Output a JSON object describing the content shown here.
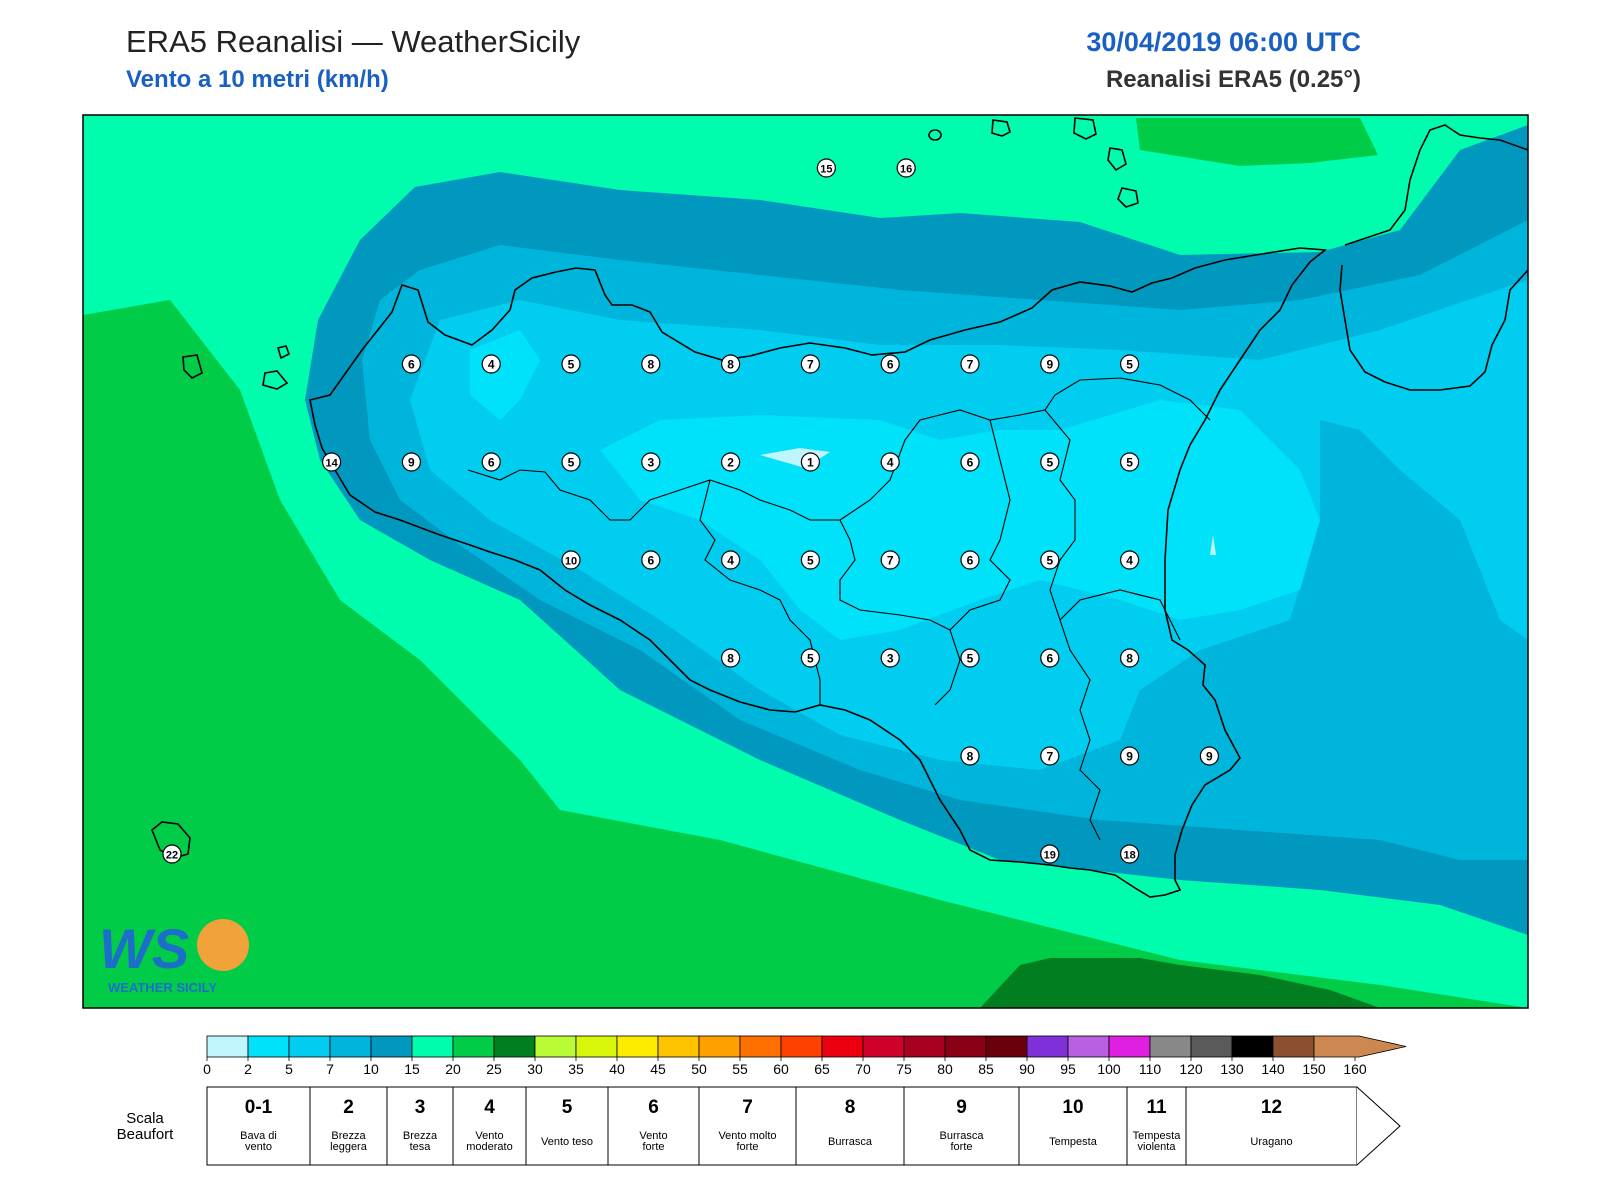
{
  "header": {
    "title": "ERA5 Reanalisi — WeatherSicily",
    "subtitle": "Vento a 10 metri (km/h)",
    "datetime": "30/04/2019 06:00 UTC",
    "source": "Reanalisi ERA5 (0.25°)"
  },
  "logo": {
    "letters": "WS",
    "text": "WEATHER SICILY"
  },
  "colors": {
    "0-2": "#bff5fd",
    "2-5": "#00e1fa",
    "5-7": "#00cdf0",
    "7-10": "#00b5dc",
    "10-15": "#0098be",
    "15-20": "#00fcad",
    "20-25": "#00cc48",
    "25-30": "#007e20",
    "30-35": "#b9fb35",
    "35-40": "#d7f60a",
    "40-45": "#fbec00",
    "45-50": "#ffc300",
    "50-55": "#ffa000",
    "55-60": "#ff7000",
    "60-65": "#ff4000",
    "65-70": "#ec0010",
    "70-75": "#d0002a",
    "75-80": "#a80020",
    "80-85": "#8a0014",
    "85-90": "#6a000a",
    "90-95": "#8030d8",
    "95-100": "#b860e0",
    "100-110": "#e020e0",
    "110-120": "#888888",
    "120-130": "#5a5a5a",
    "130-140": "#000000",
    "140-150": "#8c5030",
    "150-160": "#cc8850"
  },
  "colorbar": {
    "ticks": [
      "0",
      "2",
      "5",
      "7",
      "10",
      "15",
      "20",
      "25",
      "30",
      "35",
      "40",
      "45",
      "50",
      "55",
      "60",
      "65",
      "70",
      "75",
      "80",
      "85",
      "90",
      "95",
      "100",
      "110",
      "120",
      "130",
      "140",
      "150",
      "160"
    ],
    "colors": [
      "#bff5fd",
      "#00e1fa",
      "#00cdf0",
      "#00b5dc",
      "#0098be",
      "#00fcad",
      "#00cc48",
      "#007e20",
      "#b9fb35",
      "#d7f60a",
      "#fbec00",
      "#ffc300",
      "#ffa000",
      "#ff7000",
      "#ff4000",
      "#ec0010",
      "#d0002a",
      "#a80020",
      "#8a0014",
      "#6a000a",
      "#8030d8",
      "#b860e0",
      "#e020e0",
      "#888888",
      "#5a5a5a",
      "#000000",
      "#8c5030",
      "#cc8850"
    ]
  },
  "beaufort": {
    "label_line1": "Scala",
    "label_line2": "Beaufort",
    "classes": [
      {
        "num": "0-1",
        "desc": [
          "Bava di",
          "vento"
        ]
      },
      {
        "num": "2",
        "desc": [
          "Brezza",
          "leggera"
        ]
      },
      {
        "num": "3",
        "desc": [
          "Brezza",
          "tesa"
        ]
      },
      {
        "num": "4",
        "desc": [
          "Vento",
          "moderato"
        ]
      },
      {
        "num": "5",
        "desc": [
          "Vento teso"
        ]
      },
      {
        "num": "6",
        "desc": [
          "Vento",
          "forte"
        ]
      },
      {
        "num": "7",
        "desc": [
          "Vento molto",
          "forte"
        ]
      },
      {
        "num": "8",
        "desc": [
          "Burrasca"
        ]
      },
      {
        "num": "9",
        "desc": [
          "Burrasca",
          "forte"
        ]
      },
      {
        "num": "10",
        "desc": [
          "Tempesta"
        ]
      },
      {
        "num": "11",
        "desc": [
          "Tempesta",
          "violenta"
        ]
      },
      {
        "num": "12",
        "desc": [
          "Uragano"
        ]
      }
    ]
  },
  "stations": [
    {
      "lon": 15.1,
      "lat": 38.55,
      "v": "15"
    },
    {
      "lon": 15.6,
      "lat": 38.55,
      "v": "16"
    },
    {
      "lon": 12.5,
      "lat": 38.05,
      "v": "6"
    },
    {
      "lon": 13.0,
      "lat": 38.05,
      "v": "4"
    },
    {
      "lon": 13.5,
      "lat": 38.05,
      "v": "5"
    },
    {
      "lon": 14.0,
      "lat": 38.05,
      "v": "8"
    },
    {
      "lon": 14.5,
      "lat": 38.05,
      "v": "8"
    },
    {
      "lon": 15.0,
      "lat": 38.05,
      "v": "7"
    },
    {
      "lon": 15.5,
      "lat": 38.05,
      "v": "6"
    },
    {
      "lon": 16.0,
      "lat": 38.05,
      "v": "7"
    },
    {
      "lon": 16.5,
      "lat": 38.05,
      "v": "9"
    },
    {
      "lon": 17.0,
      "lat": 38.05,
      "v": "5"
    },
    {
      "lon": 12.0,
      "lat": 37.8,
      "v": "14"
    },
    {
      "lon": 12.5,
      "lat": 37.8,
      "v": "9"
    },
    {
      "lon": 13.0,
      "lat": 37.8,
      "v": "6"
    },
    {
      "lon": 13.5,
      "lat": 37.8,
      "v": "5"
    },
    {
      "lon": 14.0,
      "lat": 37.8,
      "v": "3"
    },
    {
      "lon": 14.5,
      "lat": 37.8,
      "v": "2"
    },
    {
      "lon": 15.0,
      "lat": 37.8,
      "v": "1"
    },
    {
      "lon": 15.5,
      "lat": 37.8,
      "v": "4"
    },
    {
      "lon": 16.0,
      "lat": 37.8,
      "v": "6"
    },
    {
      "lon": 16.5,
      "lat": 37.8,
      "v": "5"
    },
    {
      "lon": 17.0,
      "lat": 37.8,
      "v": "5"
    },
    {
      "lon": 13.5,
      "lat": 37.55,
      "v": "10"
    },
    {
      "lon": 14.0,
      "lat": 37.55,
      "v": "6"
    },
    {
      "lon": 14.5,
      "lat": 37.55,
      "v": "4"
    },
    {
      "lon": 15.0,
      "lat": 37.55,
      "v": "5"
    },
    {
      "lon": 15.5,
      "lat": 37.55,
      "v": "7"
    },
    {
      "lon": 16.0,
      "lat": 37.55,
      "v": "6"
    },
    {
      "lon": 16.5,
      "lat": 37.55,
      "v": "5"
    },
    {
      "lon": 17.0,
      "lat": 37.55,
      "v": "4"
    },
    {
      "lon": 14.5,
      "lat": 37.3,
      "v": "8"
    },
    {
      "lon": 15.0,
      "lat": 37.3,
      "v": "5"
    },
    {
      "lon": 15.5,
      "lat": 37.3,
      "v": "3"
    },
    {
      "lon": 16.0,
      "lat": 37.3,
      "v": "5"
    },
    {
      "lon": 16.5,
      "lat": 37.3,
      "v": "6"
    },
    {
      "lon": 17.0,
      "lat": 37.3,
      "v": "8"
    },
    {
      "lon": 16.0,
      "lat": 37.05,
      "v": "8"
    },
    {
      "lon": 16.5,
      "lat": 37.05,
      "v": "7"
    },
    {
      "lon": 17.0,
      "lat": 37.05,
      "v": "9"
    },
    {
      "lon": 17.5,
      "lat": 37.05,
      "v": "9"
    },
    {
      "lon": 11.0,
      "lat": 36.8,
      "v": "22"
    },
    {
      "lon": 16.5,
      "lat": 36.8,
      "v": "19"
    },
    {
      "lon": 17.0,
      "lat": 36.8,
      "v": "18"
    }
  ]
}
